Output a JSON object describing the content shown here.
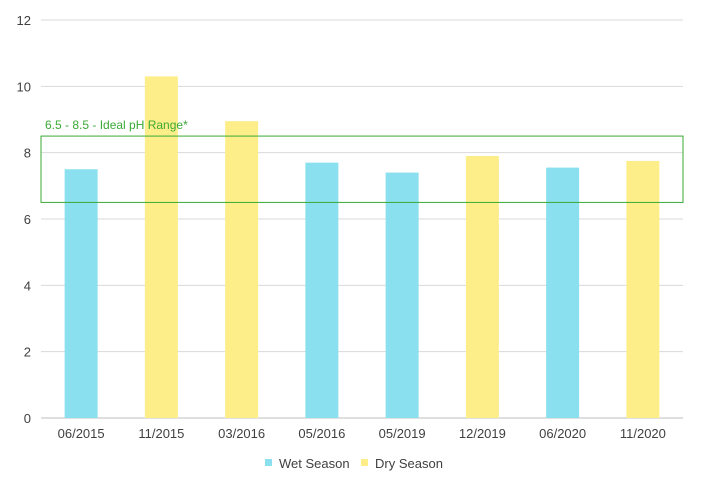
{
  "chart_data": {
    "type": "bar",
    "categories": [
      "06/2015",
      "11/2015",
      "03/2016",
      "05/2016",
      "05/2019",
      "12/2019",
      "06/2020",
      "11/2020"
    ],
    "values": [
      7.5,
      10.3,
      8.95,
      7.7,
      7.4,
      7.9,
      7.55,
      7.75
    ],
    "bar_series": [
      "Wet Season",
      "Dry Season",
      "Dry Season",
      "Wet Season",
      "Wet Season",
      "Dry Season",
      "Wet Season",
      "Dry Season"
    ],
    "series": [
      {
        "name": "Wet Season",
        "color": "#8ae0ee"
      },
      {
        "name": "Dry Season",
        "color": "#fdee8a"
      }
    ],
    "ylim": [
      0,
      12
    ],
    "yticks": [
      0,
      2,
      4,
      6,
      8,
      10,
      12
    ],
    "grid": true,
    "legend": "bottom-center",
    "band": {
      "low": 6.5,
      "high": 8.5,
      "label": "6.5 - 8.5 - Ideal pH Range*",
      "color": "#3aaa35"
    },
    "xlabel": "",
    "ylabel": "",
    "title": ""
  }
}
